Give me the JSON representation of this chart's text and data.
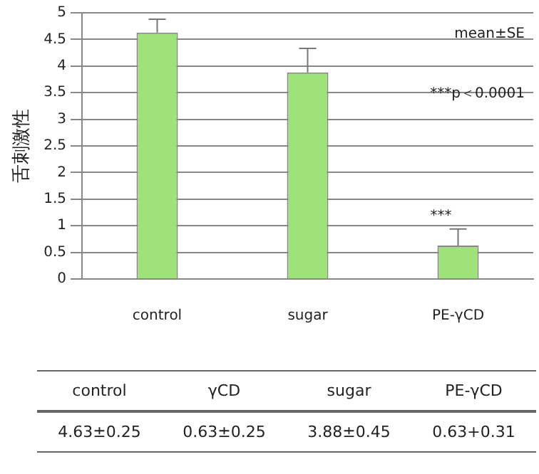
{
  "chart_data": {
    "type": "bar",
    "ylabel": "舌刺激性",
    "categories": [
      "control",
      "sugar",
      "PE-γCD"
    ],
    "values": [
      4.63,
      3.88,
      0.63
    ],
    "color": "#9fe27a",
    "errors": [
      [
        4.63,
        4.88
      ],
      [
        3.88,
        4.33
      ],
      [
        0.63,
        0.94
      ]
    ],
    "ylim": [
      0,
      5
    ],
    "yticks": [
      0,
      0.5,
      1,
      1.5,
      2,
      2.5,
      3,
      3.5,
      4,
      4.5,
      5
    ],
    "grid": "y",
    "annotations": [
      "mean±SE",
      "***p＜0.0001",
      "***",
      "control",
      "γCD",
      "sugar",
      "PE-γCD",
      "4.63±0.25",
      "0.63±0.25",
      "3.88±0.45",
      "0.63+0.31"
    ]
  }
}
